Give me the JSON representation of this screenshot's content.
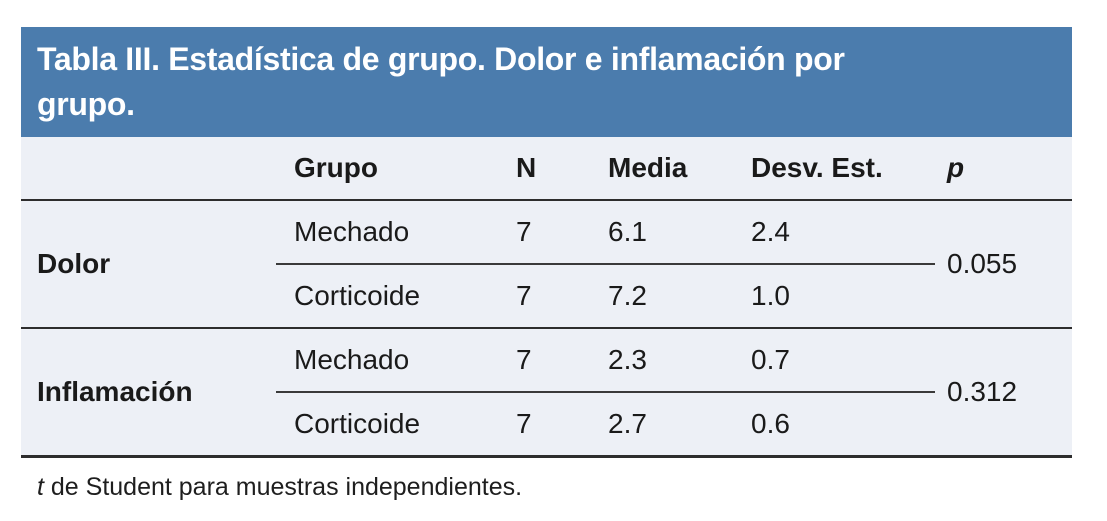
{
  "title": "Tabla III. Estadística de grupo. Dolor e inflamación por grupo.",
  "title_lines": [
    "Tabla III. Estadística de grupo. Dolor e inflamación por",
    "grupo."
  ],
  "table": {
    "columns": {
      "label": "",
      "group": "Grupo",
      "n": "N",
      "media": "Media",
      "sd": "Desv. Est.",
      "p": "p"
    },
    "sections": [
      {
        "label": "Dolor",
        "rows": [
          {
            "group": "Mechado",
            "n": "7",
            "media": "6.1",
            "sd": "2.4"
          },
          {
            "group": "Corticoide",
            "n": "7",
            "media": "7.2",
            "sd": "1.0"
          }
        ],
        "p": "0.055"
      },
      {
        "label": "Inflamación",
        "rows": [
          {
            "group": "Mechado",
            "n": "7",
            "media": "2.3",
            "sd": "0.7"
          },
          {
            "group": "Corticoide",
            "n": "7",
            "media": "2.7",
            "sd": "0.6"
          }
        ],
        "p": "0.312"
      }
    ]
  },
  "footnote": {
    "italic": "t",
    "rest": " de Student para muestras independientes."
  },
  "colors": {
    "header_bg": "#4b7cad",
    "panel_bg": "#edf0f6",
    "rule": "#2d2d2d",
    "text": "#1a1a1a",
    "title_text": "#ffffff"
  }
}
